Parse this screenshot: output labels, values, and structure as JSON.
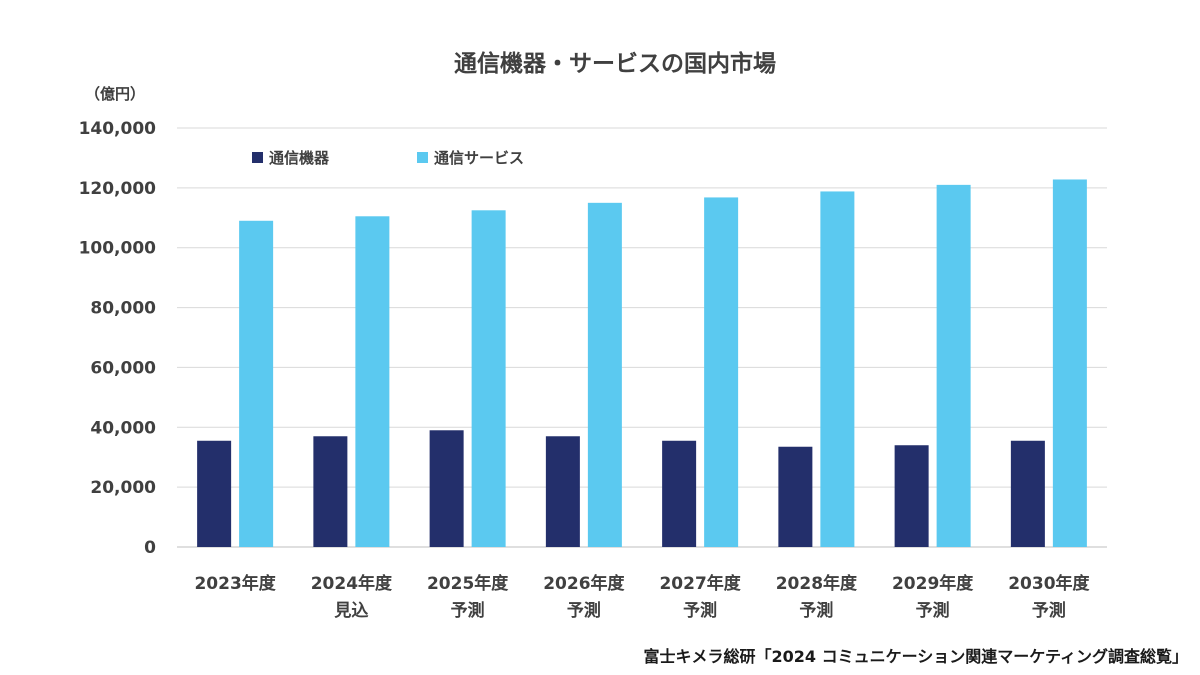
{
  "chart_data": {
    "type": "bar",
    "title": "通信機器・サービスの国内市場",
    "unit_label": "（億円）",
    "categories": [
      {
        "line1": "2023年度",
        "line2": ""
      },
      {
        "line1": "2024年度",
        "line2": "見込"
      },
      {
        "line1": "2025年度",
        "line2": "予測"
      },
      {
        "line1": "2026年度",
        "line2": "予測"
      },
      {
        "line1": "2027年度",
        "line2": "予測"
      },
      {
        "line1": "2028年度",
        "line2": "予測"
      },
      {
        "line1": "2029年度",
        "line2": "予測"
      },
      {
        "line1": "2030年度",
        "line2": "予測"
      }
    ],
    "series": [
      {
        "name": "通信機器",
        "color": "#232f6b",
        "values": [
          35500,
          37000,
          39000,
          37000,
          35500,
          33500,
          34000,
          35500
        ]
      },
      {
        "name": "通信サービス",
        "color": "#5bc9f0",
        "values": [
          109000,
          110500,
          112500,
          115000,
          116800,
          118800,
          121000,
          122800
        ]
      }
    ],
    "ylim": [
      0,
      140000
    ],
    "yticks": [
      "0",
      "20,000",
      "40,000",
      "60,000",
      "80,000",
      "100,000",
      "120,000",
      "140,000"
    ],
    "ytick_values": [
      0,
      20000,
      40000,
      60000,
      80000,
      100000,
      120000,
      140000
    ],
    "grid": true,
    "legend_position": "top-left",
    "source": "富士キメラ総研「2024 コミュニケーション関連マーケティング調査総覧」"
  }
}
